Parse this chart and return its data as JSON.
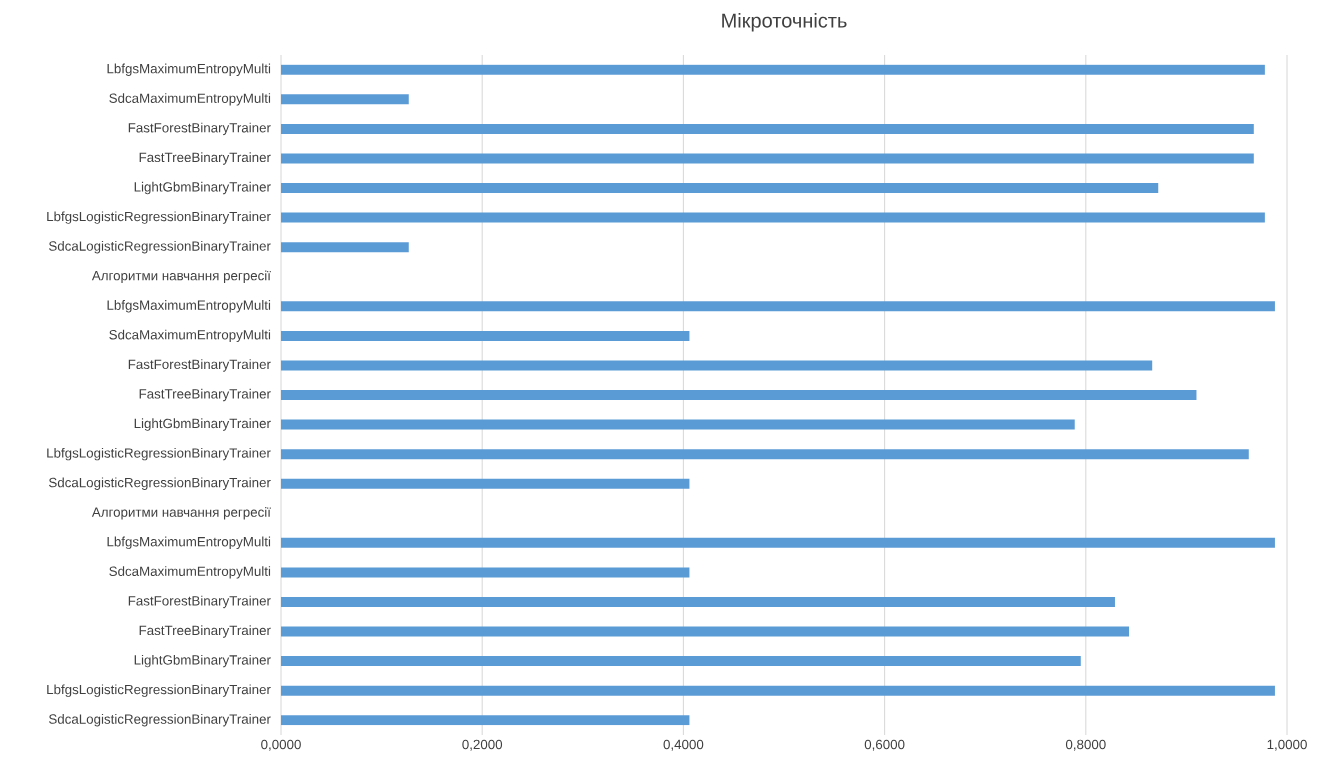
{
  "chart_data": {
    "type": "bar",
    "orientation": "horizontal",
    "title": "Мікроточність",
    "categories": [
      "LbfgsMaximumEntropyMulti",
      "SdcaMaximumEntropyMulti",
      "FastForestBinaryTrainer",
      "FastTreeBinaryTrainer",
      "LightGbmBinaryTrainer",
      "LbfgsLogisticRegressionBinaryTrainer",
      "SdcaLogisticRegressionBinaryTrainer",
      "Алгоритми навчання регресії",
      "LbfgsMaximumEntropyMulti",
      "SdcaMaximumEntropyMulti",
      "FastForestBinaryTrainer",
      "FastTreeBinaryTrainer",
      "LightGbmBinaryTrainer",
      "LbfgsLogisticRegressionBinaryTrainer",
      "SdcaLogisticRegressionBinaryTrainer",
      "Алгоритми навчання регресії",
      "LbfgsMaximumEntropyMulti",
      "SdcaMaximumEntropyMulti",
      "FastForestBinaryTrainer",
      "FastTreeBinaryTrainer",
      "LightGbmBinaryTrainer",
      "LbfgsLogisticRegressionBinaryTrainer",
      "SdcaLogisticRegressionBinaryTrainer"
    ],
    "values": [
      0.978,
      0.127,
      0.967,
      0.967,
      0.872,
      0.978,
      0.127,
      null,
      0.988,
      0.406,
      0.866,
      0.91,
      0.789,
      0.962,
      0.406,
      null,
      0.988,
      0.406,
      0.829,
      0.843,
      0.795,
      0.988,
      0.406
    ],
    "color": "#5b9bd5",
    "xlim": [
      0,
      1
    ],
    "xticks": [
      {
        "value": 0,
        "label": "0,0000"
      },
      {
        "value": 0.2,
        "label": "0,2000"
      },
      {
        "value": 0.4,
        "label": "0,4000"
      },
      {
        "value": 0.6,
        "label": "0,6000"
      },
      {
        "value": 0.8,
        "label": "0,8000"
      },
      {
        "value": 1,
        "label": "1,0000"
      }
    ],
    "grid": "x"
  }
}
